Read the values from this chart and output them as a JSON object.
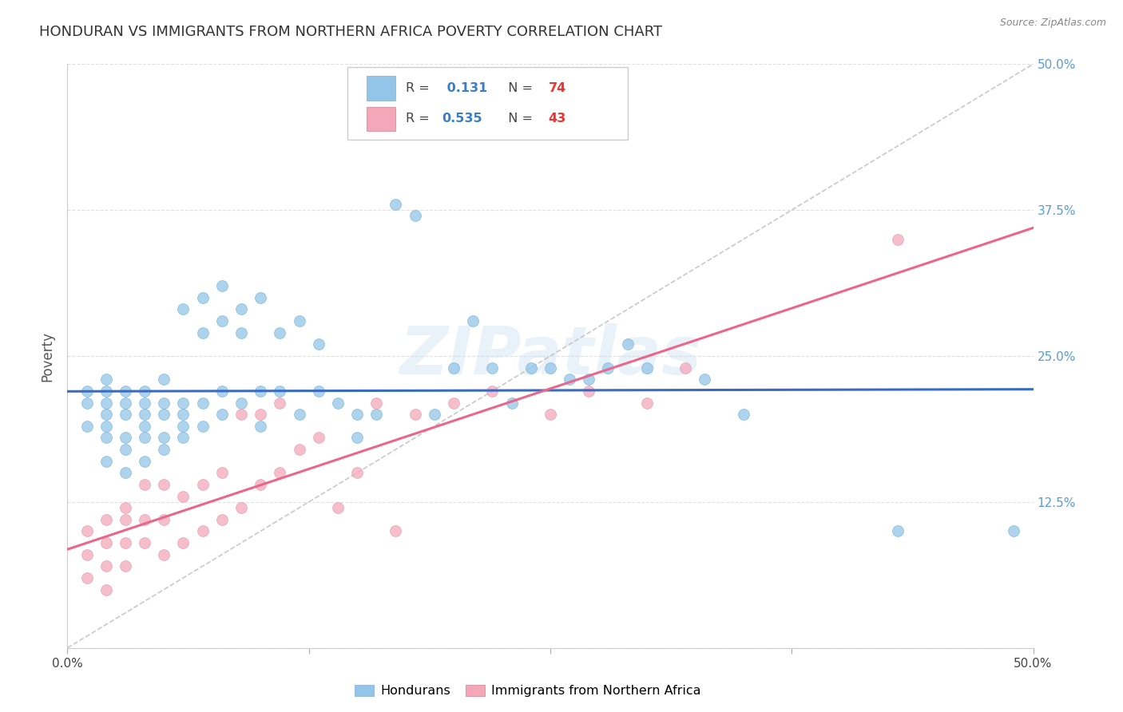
{
  "title": "HONDURAN VS IMMIGRANTS FROM NORTHERN AFRICA POVERTY CORRELATION CHART",
  "source": "Source: ZipAtlas.com",
  "ylabel": "Poverty",
  "yticks": [
    0.0,
    0.125,
    0.25,
    0.375,
    0.5
  ],
  "ytick_labels": [
    "",
    "12.5%",
    "25.0%",
    "37.5%",
    "50.0%"
  ],
  "xlim": [
    0.0,
    0.5
  ],
  "ylim": [
    0.0,
    0.5
  ],
  "background_color": "#ffffff",
  "watermark_text": "ZIPatlas",
  "color_blue": "#92C5E8",
  "color_pink": "#F4A7B9",
  "line_blue": "#3A6BC4",
  "line_pink": "#E8678A",
  "line_gray": "#BBBBBB",
  "honduran_x": [
    0.01,
    0.01,
    0.01,
    0.02,
    0.02,
    0.02,
    0.02,
    0.02,
    0.02,
    0.02,
    0.03,
    0.03,
    0.03,
    0.03,
    0.03,
    0.03,
    0.04,
    0.04,
    0.04,
    0.04,
    0.04,
    0.04,
    0.05,
    0.05,
    0.05,
    0.05,
    0.05,
    0.06,
    0.06,
    0.06,
    0.06,
    0.06,
    0.07,
    0.07,
    0.07,
    0.07,
    0.08,
    0.08,
    0.08,
    0.08,
    0.09,
    0.09,
    0.09,
    0.1,
    0.1,
    0.1,
    0.11,
    0.11,
    0.12,
    0.12,
    0.13,
    0.13,
    0.14,
    0.15,
    0.15,
    0.16,
    0.17,
    0.18,
    0.19,
    0.2,
    0.21,
    0.22,
    0.23,
    0.24,
    0.25,
    0.26,
    0.27,
    0.28,
    0.29,
    0.3,
    0.33,
    0.35,
    0.43,
    0.49
  ],
  "honduran_y": [
    0.19,
    0.21,
    0.22,
    0.16,
    0.18,
    0.19,
    0.2,
    0.21,
    0.22,
    0.23,
    0.15,
    0.17,
    0.18,
    0.2,
    0.21,
    0.22,
    0.16,
    0.18,
    0.19,
    0.2,
    0.21,
    0.22,
    0.17,
    0.18,
    0.2,
    0.21,
    0.23,
    0.18,
    0.19,
    0.2,
    0.21,
    0.29,
    0.19,
    0.21,
    0.27,
    0.3,
    0.2,
    0.22,
    0.28,
    0.31,
    0.21,
    0.27,
    0.29,
    0.19,
    0.22,
    0.3,
    0.22,
    0.27,
    0.2,
    0.28,
    0.22,
    0.26,
    0.21,
    0.18,
    0.2,
    0.2,
    0.38,
    0.37,
    0.2,
    0.24,
    0.28,
    0.24,
    0.21,
    0.24,
    0.24,
    0.23,
    0.23,
    0.24,
    0.26,
    0.24,
    0.23,
    0.2,
    0.1,
    0.1
  ],
  "africa_x": [
    0.01,
    0.01,
    0.01,
    0.02,
    0.02,
    0.02,
    0.02,
    0.03,
    0.03,
    0.03,
    0.03,
    0.04,
    0.04,
    0.04,
    0.05,
    0.05,
    0.05,
    0.06,
    0.06,
    0.07,
    0.07,
    0.08,
    0.08,
    0.09,
    0.09,
    0.1,
    0.1,
    0.11,
    0.11,
    0.12,
    0.13,
    0.14,
    0.15,
    0.16,
    0.17,
    0.18,
    0.2,
    0.22,
    0.25,
    0.27,
    0.3,
    0.32,
    0.43
  ],
  "africa_y": [
    0.06,
    0.08,
    0.1,
    0.05,
    0.07,
    0.09,
    0.11,
    0.07,
    0.09,
    0.11,
    0.12,
    0.09,
    0.11,
    0.14,
    0.08,
    0.11,
    0.14,
    0.09,
    0.13,
    0.1,
    0.14,
    0.11,
    0.15,
    0.12,
    0.2,
    0.14,
    0.2,
    0.15,
    0.21,
    0.17,
    0.18,
    0.12,
    0.15,
    0.21,
    0.1,
    0.2,
    0.21,
    0.22,
    0.2,
    0.22,
    0.21,
    0.24,
    0.35
  ]
}
